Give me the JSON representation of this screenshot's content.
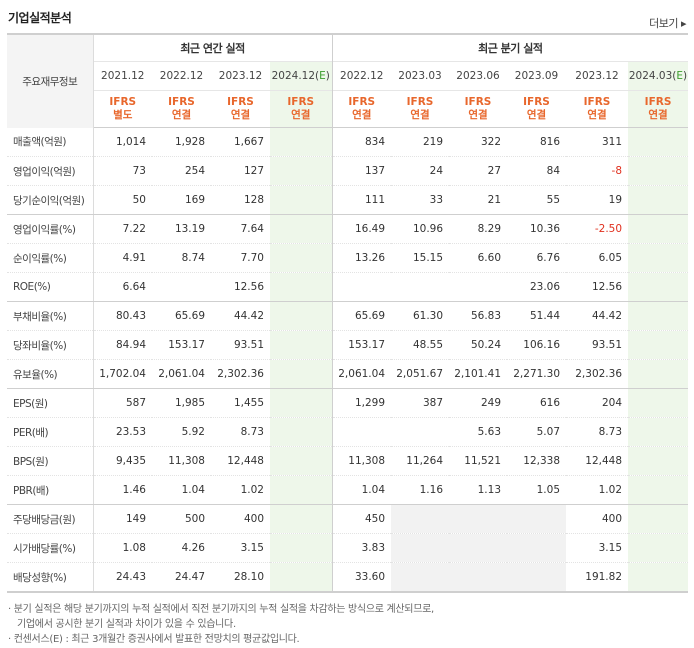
{
  "title": "기업실적분석",
  "more_label": "더보기 ▸",
  "header": {
    "row_label": "주요재무정보",
    "annual_group": "최근 연간 실적",
    "quarter_group": "최근 분기 실적",
    "annual_periods": [
      "2021.12",
      "2022.12",
      "2023.12",
      "2024.12(E)"
    ],
    "quarter_periods": [
      "2022.12",
      "2023.03",
      "2023.06",
      "2023.09",
      "2023.12",
      "2024.03(E)"
    ],
    "annual_basis": [
      [
        "IFRS",
        "별도"
      ],
      [
        "IFRS",
        "연결"
      ],
      [
        "IFRS",
        "연결"
      ],
      [
        "IFRS",
        "연결"
      ]
    ],
    "quarter_basis": [
      [
        "IFRS",
        "연결"
      ],
      [
        "IFRS",
        "연결"
      ],
      [
        "IFRS",
        "연결"
      ],
      [
        "IFRS",
        "연결"
      ],
      [
        "IFRS",
        "연결"
      ],
      [
        "IFRS",
        "연결"
      ]
    ]
  },
  "rows": [
    {
      "label": "매출액(억원)",
      "annual": [
        "1,014",
        "1,928",
        "1,667",
        ""
      ],
      "quarter": [
        "834",
        "219",
        "322",
        "816",
        "311",
        ""
      ]
    },
    {
      "label": "영업이익(억원)",
      "annual": [
        "73",
        "254",
        "127",
        ""
      ],
      "quarter": [
        "137",
        "24",
        "27",
        "84",
        "-8",
        ""
      ]
    },
    {
      "label": "당기순이익(억원)",
      "annual": [
        "50",
        "169",
        "128",
        ""
      ],
      "quarter": [
        "111",
        "33",
        "21",
        "55",
        "19",
        ""
      ]
    },
    {
      "label": "영업이익률(%)",
      "annual": [
        "7.22",
        "13.19",
        "7.64",
        ""
      ],
      "quarter": [
        "16.49",
        "10.96",
        "8.29",
        "10.36",
        "-2.50",
        ""
      ]
    },
    {
      "label": "순이익률(%)",
      "annual": [
        "4.91",
        "8.74",
        "7.70",
        ""
      ],
      "quarter": [
        "13.26",
        "15.15",
        "6.60",
        "6.76",
        "6.05",
        ""
      ]
    },
    {
      "label": "ROE(%)",
      "annual": [
        "6.64",
        "",
        "12.56",
        ""
      ],
      "quarter": [
        "",
        "",
        "",
        "23.06",
        "12.56",
        ""
      ]
    },
    {
      "label": "부채비율(%)",
      "annual": [
        "80.43",
        "65.69",
        "44.42",
        ""
      ],
      "quarter": [
        "65.69",
        "61.30",
        "56.83",
        "51.44",
        "44.42",
        ""
      ]
    },
    {
      "label": "당좌비율(%)",
      "annual": [
        "84.94",
        "153.17",
        "93.51",
        ""
      ],
      "quarter": [
        "153.17",
        "48.55",
        "50.24",
        "106.16",
        "93.51",
        ""
      ]
    },
    {
      "label": "유보율(%)",
      "annual": [
        "1,702.04",
        "2,061.04",
        "2,302.36",
        ""
      ],
      "quarter": [
        "2,061.04",
        "2,051.67",
        "2,101.41",
        "2,271.30",
        "2,302.36",
        ""
      ]
    },
    {
      "label": "EPS(원)",
      "annual": [
        "587",
        "1,985",
        "1,455",
        ""
      ],
      "quarter": [
        "1,299",
        "387",
        "249",
        "616",
        "204",
        ""
      ]
    },
    {
      "label": "PER(배)",
      "annual": [
        "23.53",
        "5.92",
        "8.73",
        ""
      ],
      "quarter": [
        "",
        "",
        "5.63",
        "5.07",
        "8.73",
        ""
      ]
    },
    {
      "label": "BPS(원)",
      "annual": [
        "9,435",
        "11,308",
        "12,448",
        ""
      ],
      "quarter": [
        "11,308",
        "11,264",
        "11,521",
        "12,338",
        "12,448",
        ""
      ]
    },
    {
      "label": "PBR(배)",
      "annual": [
        "1.46",
        "1.04",
        "1.02",
        ""
      ],
      "quarter": [
        "1.04",
        "1.16",
        "1.13",
        "1.05",
        "1.02",
        ""
      ]
    },
    {
      "label": "주당배당금(원)",
      "annual": [
        "149",
        "500",
        "400",
        ""
      ],
      "quarter": [
        "450",
        "",
        "",
        "",
        "400",
        ""
      ]
    },
    {
      "label": "시가배당률(%)",
      "annual": [
        "1.08",
        "4.26",
        "3.15",
        ""
      ],
      "quarter": [
        "3.83",
        "",
        "",
        "",
        "3.15",
        ""
      ]
    },
    {
      "label": "배당성향(%)",
      "annual": [
        "24.43",
        "24.47",
        "28.10",
        ""
      ],
      "quarter": [
        "33.60",
        "",
        "",
        "",
        "191.82",
        ""
      ]
    }
  ],
  "notes": [
    "· 분기 실적은 해당 분기까지의 누적 실적에서 직전 분기까지의 누적 실적을 차감하는 방식으로 계산되므로,",
    "기업에서 공시한 분기 실적과 차이가 있을 수 있습니다.",
    "· 컨센서스(E) : 최근 3개월간 증권사에서 발표한 전망치의 평균값입니다."
  ]
}
